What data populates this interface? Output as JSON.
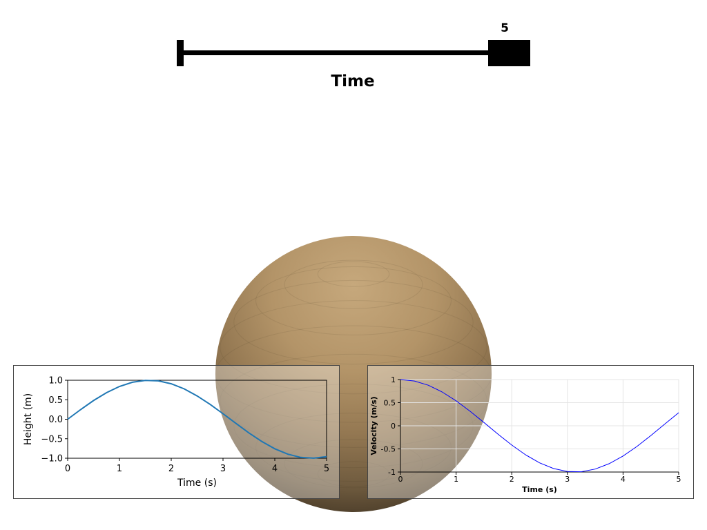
{
  "slider": {
    "title": "Time",
    "value_label": "5",
    "min": 0,
    "max": 5,
    "value": 5
  },
  "sphere": {
    "color": "#c2a47a"
  },
  "chart_data": [
    {
      "type": "line",
      "xlabel": "Time (s)",
      "ylabel": "Height (m)",
      "xlim": [
        0,
        5
      ],
      "ylim": [
        -1.0,
        1.0
      ],
      "xticks": [
        "0",
        "1",
        "2",
        "3",
        "4",
        "5"
      ],
      "yticks": [
        "1.0",
        "0.5",
        "0.0",
        "−0.5",
        "−1.0"
      ],
      "grid": false,
      "series": [
        {
          "color": "#1f77b4",
          "x": [
            0,
            0.25,
            0.5,
            0.75,
            1,
            1.25,
            1.5,
            1.75,
            2,
            2.25,
            2.5,
            2.75,
            3,
            3.25,
            3.5,
            3.75,
            4,
            4.25,
            4.5,
            4.75,
            5
          ],
          "y": [
            0,
            0.247,
            0.479,
            0.682,
            0.841,
            0.949,
            0.997,
            0.984,
            0.909,
            0.778,
            0.598,
            0.382,
            0.141,
            -0.108,
            -0.351,
            -0.572,
            -0.757,
            -0.895,
            -0.978,
            -0.999,
            -0.959
          ]
        }
      ]
    },
    {
      "type": "line",
      "xlabel": "Time (s)",
      "ylabel": "Velocity (m/s)",
      "xlim": [
        0,
        5
      ],
      "ylim": [
        -1,
        1
      ],
      "xticks": [
        "0",
        "1",
        "2",
        "3",
        "4",
        "5"
      ],
      "yticks": [
        "1",
        "0.5",
        "0",
        "-0.5",
        "-1"
      ],
      "grid": true,
      "series": [
        {
          "color": "#0000ff",
          "x": [
            0,
            0.25,
            0.5,
            0.75,
            1,
            1.25,
            1.5,
            1.75,
            2,
            2.25,
            2.5,
            2.75,
            3,
            3.25,
            3.5,
            3.75,
            4,
            4.25,
            4.5,
            4.75,
            5
          ],
          "y": [
            1,
            0.969,
            0.878,
            0.732,
            0.54,
            0.315,
            0.071,
            -0.178,
            -0.416,
            -0.628,
            -0.801,
            -0.924,
            -0.99,
            -0.994,
            -0.936,
            -0.82,
            -0.654,
            -0.446,
            -0.211,
            0.038,
            0.284
          ]
        }
      ]
    }
  ]
}
